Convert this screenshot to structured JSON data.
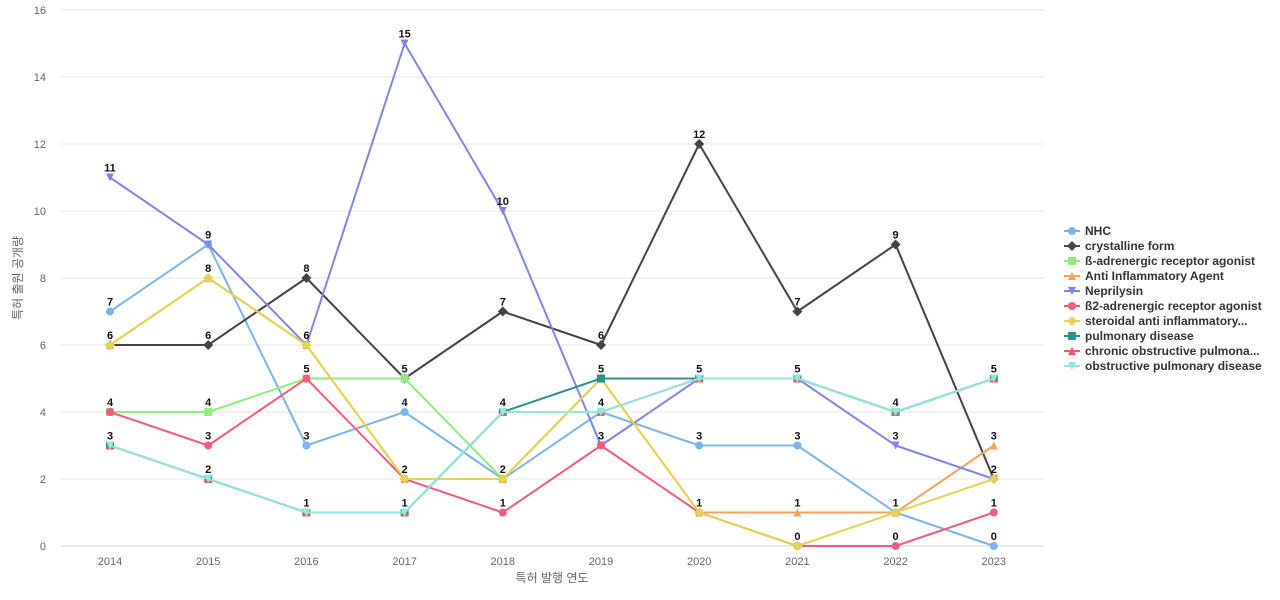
{
  "chart_data": {
    "type": "line",
    "xlabel": "특허 발행 연도",
    "ylabel": "특허 출원 공개량",
    "ylim": [
      0,
      16
    ],
    "yticks": [
      0,
      2,
      4,
      6,
      8,
      10,
      12,
      14,
      16
    ],
    "grid": "horizontal",
    "legend_position": "right",
    "categories": [
      "2014",
      "2015",
      "2016",
      "2017",
      "2018",
      "2019",
      "2020",
      "2021",
      "2022",
      "2023"
    ],
    "series": [
      {
        "name": "NHC",
        "color": "#7cb5ec",
        "marker": "circle",
        "values": [
          7,
          9,
          3,
          4,
          2,
          4,
          3,
          3,
          1,
          0
        ]
      },
      {
        "name": "crystalline form",
        "color": "#434348",
        "marker": "diamond",
        "values": [
          6,
          6,
          8,
          5,
          7,
          6,
          12,
          7,
          9,
          2
        ]
      },
      {
        "name": "ß-adrenergic receptor agonist",
        "color": "#90ed7d",
        "marker": "square",
        "values": [
          4,
          4,
          5,
          5,
          2,
          5,
          5,
          5,
          4,
          5
        ]
      },
      {
        "name": "Anti Inflammatory Agent",
        "color": "#f7a35c",
        "marker": "triangle",
        "values": [
          6,
          8,
          6,
          2,
          2,
          5,
          1,
          1,
          1,
          3
        ]
      },
      {
        "name": "Neprilysin",
        "color": "#8085e9",
        "marker": "triangle-down",
        "values": [
          11,
          9,
          6,
          15,
          10,
          3,
          5,
          5,
          3,
          2
        ]
      },
      {
        "name": "ß2-adrenergic receptor agonist",
        "color": "#f15c80",
        "marker": "circle",
        "values": [
          4,
          3,
          5,
          2,
          1,
          3,
          1,
          0,
          0,
          1
        ]
      },
      {
        "name": "steroidal anti inflammatory...",
        "color": "#e4d354",
        "marker": "diamond",
        "values": [
          6,
          8,
          6,
          2,
          2,
          5,
          1,
          0,
          1,
          2
        ]
      },
      {
        "name": "pulmonary disease",
        "color": "#2b908f",
        "marker": "square",
        "values": [
          3,
          2,
          1,
          1,
          4,
          5,
          5,
          5,
          4,
          5
        ]
      },
      {
        "name": "chronic obstructive pulmona...",
        "color": "#f45b5b",
        "marker": "triangle",
        "values": [
          3,
          2,
          1,
          1,
          4,
          4,
          5,
          5,
          4,
          5
        ]
      },
      {
        "name": "obstructive pulmonary disease",
        "color": "#91e8e1",
        "marker": "triangle-down",
        "values": [
          3,
          2,
          1,
          1,
          4,
          4,
          5,
          5,
          4,
          5
        ]
      }
    ]
  }
}
